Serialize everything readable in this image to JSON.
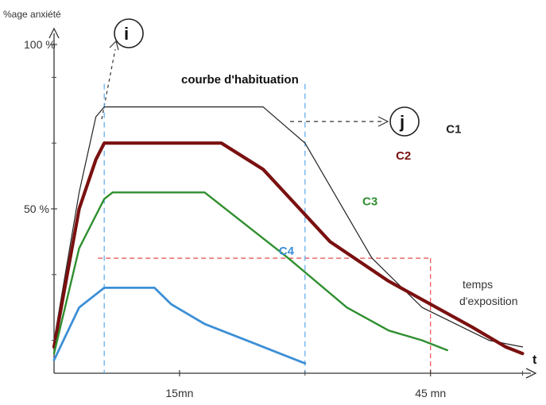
{
  "chart_data": {
    "type": "line",
    "title": "courbe d'habituation",
    "ylabel": "%age anxiété",
    "xlabel_lines": [
      "temps",
      "d'exposition"
    ],
    "x_arrow_label": "t",
    "ylim": [
      0,
      100
    ],
    "xlim": [
      0,
      57
    ],
    "y_ticks": [
      {
        "label": "100 %",
        "value": 100
      },
      {
        "label": "50 %",
        "value": 50
      }
    ],
    "x_ticks": [
      {
        "label": "15mn",
        "value": 15
      },
      {
        "label": "45 mn",
        "value": 45
      }
    ],
    "series": [
      {
        "name": "C1",
        "color": "#222222",
        "x": [
          0,
          3,
          5,
          6,
          25,
          30,
          38,
          44,
          52,
          56
        ],
        "y": [
          10,
          55,
          78,
          81,
          81,
          70,
          35,
          20,
          10,
          8
        ]
      },
      {
        "name": "C2",
        "color": "#7a1010",
        "x": [
          0,
          3,
          5,
          6,
          20,
          25,
          33,
          40,
          45,
          50,
          54,
          56
        ],
        "y": [
          8,
          50,
          65,
          70,
          70,
          62,
          40,
          28,
          21,
          14,
          8,
          6
        ]
      },
      {
        "name": "C3",
        "color": "#2f8f2f",
        "x": [
          0,
          3,
          6,
          7,
          18,
          22,
          28,
          35,
          40,
          44,
          47
        ],
        "y": [
          6,
          38,
          53,
          55,
          55,
          47,
          35,
          20,
          13,
          10,
          7
        ]
      },
      {
        "name": "C4",
        "color": "#3c8fd6",
        "x": [
          0,
          3,
          6,
          12,
          14,
          18,
          24,
          27,
          30
        ],
        "y": [
          4,
          20,
          26,
          26,
          21,
          15,
          9,
          6,
          3
        ]
      }
    ],
    "reference_lines": {
      "horizontal_y": 35,
      "vertical_blue_x": [
        6,
        30
      ],
      "vertical_red_x": 45,
      "horizontal_x_end": 45
    },
    "markers": [
      {
        "label": "i"
      },
      {
        "label": "j"
      }
    ],
    "colors": {
      "axis": "#333333",
      "dashed_blue": "#5aa8e8",
      "dashed_red": "#e64c4c",
      "arrow_dash": "#333333"
    }
  }
}
